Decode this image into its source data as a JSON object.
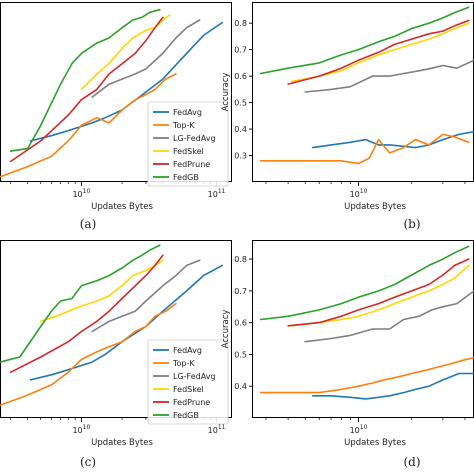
{
  "chart_data": [
    {
      "type": "line",
      "panel": "a",
      "caption": "(a)",
      "xlabel": "Updates Bytes",
      "ylabel": "",
      "xscale": "log",
      "xlim": [
        2500000000.0,
        130000000000.0
      ],
      "ylim": [
        0.2,
        0.9
      ],
      "xticks": [
        {
          "v": 10000000000.0,
          "label": "10^10"
        },
        {
          "v": 100000000000.0,
          "label": "10^11"
        }
      ],
      "yticks": [],
      "legend": {
        "placement": "lower-right",
        "entries": [
          "FedAvg",
          "Top-K",
          "LG-FedAvg",
          "FedSkel",
          "FedPrune",
          "FedGB"
        ]
      },
      "series": [
        {
          "name": "FedAvg",
          "color": "#1f77b4",
          "x": [
            4200000000.0,
            6000000000.0,
            8000000000.0,
            12000000000.0,
            15000000000.0,
            20000000000.0,
            30000000000.0,
            40000000000.0,
            60000000000.0,
            80000000000.0,
            110000000000.0
          ],
          "y": [
            0.36,
            0.38,
            0.4,
            0.43,
            0.45,
            0.48,
            0.55,
            0.6,
            0.7,
            0.77,
            0.82
          ]
        },
        {
          "name": "Top-K",
          "color": "#ff7f0e",
          "x": [
            2500000000.0,
            4000000000.0,
            6000000000.0,
            8000000000.0,
            10000000000.0,
            13000000000.0,
            16000000000.0,
            20000000000.0,
            25000000000.0,
            30000000000.0,
            35000000000.0,
            42000000000.0,
            50000000000.0
          ],
          "y": [
            0.22,
            0.26,
            0.3,
            0.36,
            0.42,
            0.45,
            0.43,
            0.48,
            0.52,
            0.54,
            0.56,
            0.6,
            0.62
          ]
        },
        {
          "name": "LG-FedAvg",
          "color": "#7f7f7f",
          "x": [
            12000000000.0,
            16000000000.0,
            20000000000.0,
            25000000000.0,
            30000000000.0,
            40000000000.0,
            50000000000.0,
            60000000000.0,
            75000000000.0
          ],
          "y": [
            0.53,
            0.58,
            0.6,
            0.62,
            0.64,
            0.7,
            0.76,
            0.8,
            0.83
          ]
        },
        {
          "name": "FedSkel",
          "color": "#ffd700",
          "x": [
            10000000000.0,
            13000000000.0,
            16000000000.0,
            20000000000.0,
            24000000000.0,
            30000000000.0,
            35000000000.0,
            40000000000.0,
            45000000000.0
          ],
          "y": [
            0.56,
            0.62,
            0.66,
            0.72,
            0.76,
            0.79,
            0.8,
            0.83,
            0.85
          ]
        },
        {
          "name": "FedPrune",
          "color": "#d62728",
          "x": [
            3000000000.0,
            5000000000.0,
            8000000000.0,
            10000000000.0,
            13000000000.0,
            16000000000.0,
            20000000000.0,
            25000000000.0,
            30000000000.0,
            35000000000.0,
            40000000000.0
          ],
          "y": [
            0.28,
            0.36,
            0.46,
            0.52,
            0.56,
            0.62,
            0.66,
            0.7,
            0.75,
            0.8,
            0.84
          ]
        },
        {
          "name": "FedGB",
          "color": "#2ca02c",
          "x": [
            3000000000.0,
            4000000000.0,
            5000000000.0,
            7000000000.0,
            8500000000.0,
            10000000000.0,
            13000000000.0,
            16000000000.0,
            20000000000.0,
            24000000000.0,
            28000000000.0,
            32000000000.0,
            38000000000.0
          ],
          "y": [
            0.32,
            0.33,
            0.42,
            0.58,
            0.66,
            0.7,
            0.74,
            0.76,
            0.8,
            0.83,
            0.84,
            0.86,
            0.87
          ]
        }
      ]
    },
    {
      "type": "line",
      "panel": "b",
      "caption": "(b)",
      "xlabel": "Updates Bytes",
      "ylabel": "Accuracy",
      "xscale": "log",
      "xlim": [
        2500000000.0,
        45000000000.0
      ],
      "ylim": [
        0.2,
        0.88
      ],
      "xticks": [
        {
          "v": 10000000000.0,
          "label": "10^10"
        }
      ],
      "yticks": [
        0.3,
        0.4,
        0.5,
        0.6,
        0.7,
        0.8
      ],
      "series": [
        {
          "name": "FedAvg",
          "color": "#1f77b4",
          "x": [
            5500000000.0,
            7000000000.0,
            9000000000.0,
            11000000000.0,
            13000000000.0,
            15000000000.0,
            18000000000.0,
            21000000000.0,
            25000000000.0,
            30000000000.0,
            37000000000.0,
            45000000000.0
          ],
          "y": [
            0.33,
            0.34,
            0.35,
            0.36,
            0.34,
            0.34,
            0.335,
            0.33,
            0.34,
            0.36,
            0.38,
            0.39
          ]
        },
        {
          "name": "Top-K",
          "color": "#ff7f0e",
          "x": [
            2800000000.0,
            4000000000.0,
            6000000000.0,
            8000000000.0,
            10000000000.0,
            11500000000.0,
            13000000000.0,
            15000000000.0,
            18000000000.0,
            21000000000.0,
            25000000000.0,
            30000000000.0,
            35000000000.0,
            42000000000.0
          ],
          "y": [
            0.28,
            0.28,
            0.28,
            0.28,
            0.27,
            0.29,
            0.36,
            0.31,
            0.33,
            0.36,
            0.34,
            0.38,
            0.37,
            0.35
          ]
        },
        {
          "name": "LG-FedAvg",
          "color": "#7f7f7f",
          "x": [
            5000000000.0,
            7000000000.0,
            9000000000.0,
            12000000000.0,
            15000000000.0,
            18000000000.0,
            22000000000.0,
            26000000000.0,
            30000000000.0,
            36000000000.0,
            45000000000.0
          ],
          "y": [
            0.54,
            0.55,
            0.56,
            0.6,
            0.6,
            0.61,
            0.62,
            0.63,
            0.64,
            0.63,
            0.66
          ]
        },
        {
          "name": "FedSkel",
          "color": "#ffd700",
          "x": [
            4200000000.0,
            6000000000.0,
            8000000000.0,
            10000000000.0,
            13000000000.0,
            16000000000.0,
            20000000000.0,
            25000000000.0,
            30000000000.0,
            35000000000.0,
            42000000000.0
          ],
          "y": [
            0.58,
            0.6,
            0.62,
            0.65,
            0.68,
            0.7,
            0.72,
            0.74,
            0.76,
            0.78,
            0.8
          ]
        },
        {
          "name": "FedPrune",
          "color": "#d62728",
          "x": [
            4000000000.0,
            6000000000.0,
            8000000000.0,
            10000000000.0,
            13000000000.0,
            16000000000.0,
            20000000000.0,
            25000000000.0,
            30000000000.0,
            35000000000.0,
            42000000000.0
          ],
          "y": [
            0.57,
            0.6,
            0.63,
            0.66,
            0.69,
            0.72,
            0.74,
            0.76,
            0.77,
            0.79,
            0.81
          ]
        },
        {
          "name": "FedGB",
          "color": "#2ca02c",
          "x": [
            2800000000.0,
            4000000000.0,
            6000000000.0,
            8000000000.0,
            10000000000.0,
            13000000000.0,
            16000000000.0,
            20000000000.0,
            25000000000.0,
            30000000000.0,
            35000000000.0,
            42000000000.0
          ],
          "y": [
            0.61,
            0.63,
            0.65,
            0.68,
            0.7,
            0.73,
            0.75,
            0.78,
            0.8,
            0.82,
            0.84,
            0.86
          ]
        }
      ]
    },
    {
      "type": "line",
      "panel": "c",
      "caption": "(c)",
      "xlabel": "Updates Bytes",
      "ylabel": "",
      "xscale": "log",
      "xlim": [
        2500000000.0,
        130000000000.0
      ],
      "ylim": [
        0.2,
        0.9
      ],
      "xticks": [
        {
          "v": 10000000000.0,
          "label": "10^10"
        },
        {
          "v": 100000000000.0,
          "label": "10^11"
        }
      ],
      "yticks": [],
      "legend": {
        "placement": "lower-right",
        "entries": [
          "FedAvg",
          "Top-K",
          "LG-FedAvg",
          "FedSkel",
          "FedPrune",
          "FedGB"
        ]
      },
      "series": [
        {
          "name": "FedAvg",
          "color": "#1f77b4",
          "x": [
            4200000000.0,
            6000000000.0,
            8000000000.0,
            12000000000.0,
            15000000000.0,
            20000000000.0,
            30000000000.0,
            40000000000.0,
            60000000000.0,
            80000000000.0,
            110000000000.0
          ],
          "y": [
            0.35,
            0.37,
            0.39,
            0.42,
            0.45,
            0.5,
            0.56,
            0.62,
            0.7,
            0.76,
            0.8
          ]
        },
        {
          "name": "Top-K",
          "color": "#ff7f0e",
          "x": [
            2500000000.0,
            4000000000.0,
            6000000000.0,
            8000000000.0,
            10000000000.0,
            13000000000.0,
            16000000000.0,
            20000000000.0,
            25000000000.0,
            30000000000.0,
            35000000000.0,
            42000000000.0,
            50000000000.0
          ],
          "y": [
            0.25,
            0.29,
            0.33,
            0.38,
            0.43,
            0.46,
            0.48,
            0.5,
            0.54,
            0.56,
            0.6,
            0.62,
            0.65
          ]
        },
        {
          "name": "LG-FedAvg",
          "color": "#7f7f7f",
          "x": [
            12000000000.0,
            16000000000.0,
            20000000000.0,
            25000000000.0,
            30000000000.0,
            40000000000.0,
            50000000000.0,
            60000000000.0,
            75000000000.0
          ],
          "y": [
            0.54,
            0.58,
            0.6,
            0.62,
            0.66,
            0.72,
            0.76,
            0.8,
            0.82
          ]
        },
        {
          "name": "FedSkel",
          "color": "#ffd700",
          "x": [
            5000000000.0,
            6500000000.0,
            8000000000.0,
            10000000000.0,
            13000000000.0,
            16000000000.0,
            20000000000.0,
            24000000000.0,
            30000000000.0,
            35000000000.0,
            40000000000.0
          ],
          "y": [
            0.58,
            0.6,
            0.62,
            0.64,
            0.66,
            0.68,
            0.72,
            0.76,
            0.78,
            0.8,
            0.82
          ]
        },
        {
          "name": "FedPrune",
          "color": "#d62728",
          "x": [
            3000000000.0,
            5000000000.0,
            8000000000.0,
            10000000000.0,
            13000000000.0,
            16000000000.0,
            20000000000.0,
            25000000000.0,
            30000000000.0,
            35000000000.0,
            40000000000.0
          ],
          "y": [
            0.38,
            0.44,
            0.5,
            0.54,
            0.58,
            0.62,
            0.67,
            0.72,
            0.76,
            0.8,
            0.84
          ]
        },
        {
          "name": "FedGB",
          "color": "#2ca02c",
          "x": [
            2500000000.0,
            3500000000.0,
            5000000000.0,
            6000000000.0,
            7000000000.0,
            8500000000.0,
            10000000000.0,
            13000000000.0,
            16000000000.0,
            20000000000.0,
            24000000000.0,
            28000000000.0,
            32000000000.0,
            38000000000.0
          ],
          "y": [
            0.42,
            0.44,
            0.56,
            0.62,
            0.66,
            0.67,
            0.72,
            0.74,
            0.76,
            0.79,
            0.82,
            0.84,
            0.86,
            0.88
          ]
        }
      ]
    },
    {
      "type": "line",
      "panel": "d",
      "caption": "(d)",
      "xlabel": "Updates Bytes",
      "ylabel": "Accuracy",
      "xscale": "log",
      "xlim": [
        2500000000.0,
        45000000000.0
      ],
      "ylim": [
        0.3,
        0.86
      ],
      "xticks": [
        {
          "v": 10000000000.0,
          "label": "10^10"
        }
      ],
      "yticks": [
        0.4,
        0.5,
        0.6,
        0.7,
        0.8
      ],
      "series": [
        {
          "name": "FedAvg",
          "color": "#1f77b4",
          "x": [
            5500000000.0,
            7000000000.0,
            9000000000.0,
            11000000000.0,
            13000000000.0,
            15000000000.0,
            18000000000.0,
            21000000000.0,
            25000000000.0,
            30000000000.0,
            37000000000.0,
            45000000000.0
          ],
          "y": [
            0.37,
            0.37,
            0.365,
            0.36,
            0.365,
            0.37,
            0.38,
            0.39,
            0.4,
            0.42,
            0.44,
            0.44
          ]
        },
        {
          "name": "Top-K",
          "color": "#ff7f0e",
          "x": [
            2800000000.0,
            4000000000.0,
            6000000000.0,
            8000000000.0,
            10000000000.0,
            12000000000.0,
            14000000000.0,
            17000000000.0,
            20000000000.0,
            24000000000.0,
            28000000000.0,
            33000000000.0,
            38000000000.0,
            45000000000.0
          ],
          "y": [
            0.38,
            0.38,
            0.38,
            0.39,
            0.4,
            0.41,
            0.42,
            0.43,
            0.44,
            0.45,
            0.46,
            0.47,
            0.48,
            0.49
          ]
        },
        {
          "name": "LG-FedAvg",
          "color": "#7f7f7f",
          "x": [
            5000000000.0,
            7000000000.0,
            9000000000.0,
            12000000000.0,
            15000000000.0,
            18000000000.0,
            22000000000.0,
            26000000000.0,
            30000000000.0,
            36000000000.0,
            45000000000.0
          ],
          "y": [
            0.54,
            0.55,
            0.56,
            0.58,
            0.58,
            0.61,
            0.62,
            0.64,
            0.65,
            0.66,
            0.7
          ]
        },
        {
          "name": "FedSkel",
          "color": "#ffd700",
          "x": [
            4200000000.0,
            6000000000.0,
            8000000000.0,
            10000000000.0,
            13000000000.0,
            16000000000.0,
            20000000000.0,
            25000000000.0,
            30000000000.0,
            35000000000.0,
            42000000000.0
          ],
          "y": [
            0.59,
            0.6,
            0.61,
            0.62,
            0.64,
            0.66,
            0.68,
            0.7,
            0.72,
            0.74,
            0.78
          ]
        },
        {
          "name": "FedPrune",
          "color": "#d62728",
          "x": [
            4000000000.0,
            6000000000.0,
            8000000000.0,
            10000000000.0,
            13000000000.0,
            16000000000.0,
            20000000000.0,
            25000000000.0,
            30000000000.0,
            35000000000.0,
            42000000000.0
          ],
          "y": [
            0.59,
            0.6,
            0.62,
            0.64,
            0.66,
            0.68,
            0.7,
            0.72,
            0.75,
            0.78,
            0.8
          ]
        },
        {
          "name": "FedGB",
          "color": "#2ca02c",
          "x": [
            2800000000.0,
            4000000000.0,
            6000000000.0,
            8000000000.0,
            10000000000.0,
            13000000000.0,
            16000000000.0,
            20000000000.0,
            25000000000.0,
            30000000000.0,
            35000000000.0,
            42000000000.0
          ],
          "y": [
            0.61,
            0.62,
            0.64,
            0.66,
            0.68,
            0.7,
            0.72,
            0.75,
            0.78,
            0.8,
            0.82,
            0.84
          ]
        }
      ]
    }
  ]
}
